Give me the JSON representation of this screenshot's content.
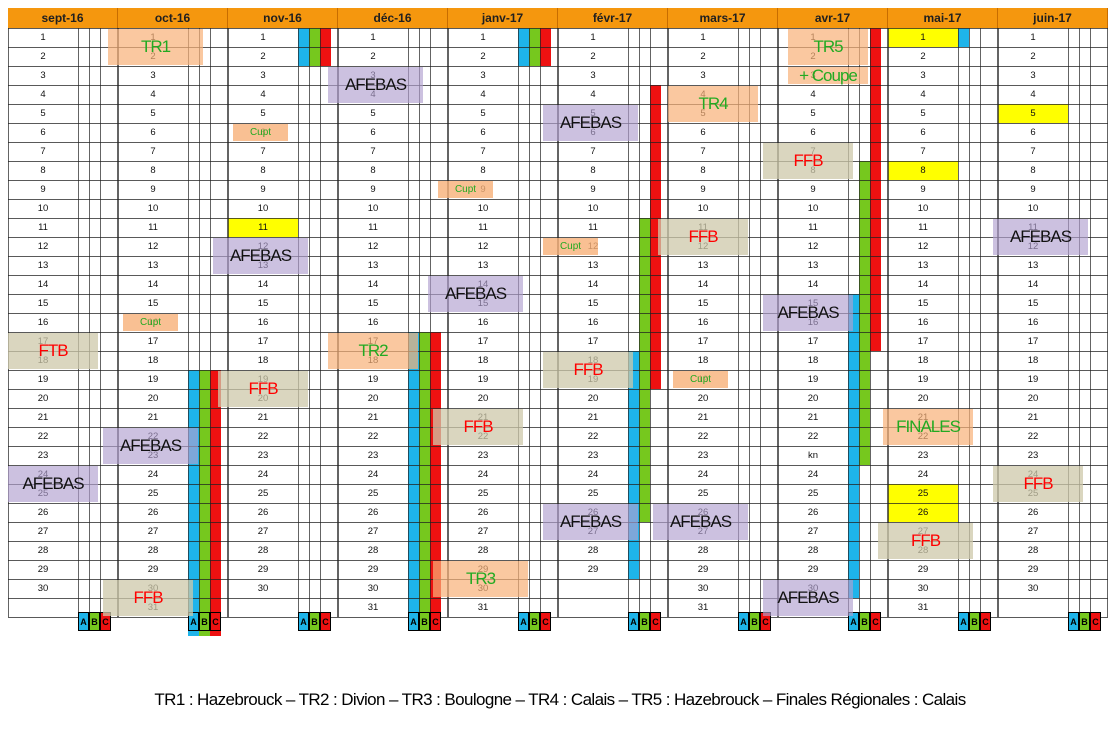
{
  "months": [
    {
      "name": "sept-16",
      "days": 30
    },
    {
      "name": "oct-16",
      "days": 31
    },
    {
      "name": "nov-16",
      "days": 30
    },
    {
      "name": "déc-16",
      "days": 31
    },
    {
      "name": "janv-17",
      "days": 31
    },
    {
      "name": "févr-17",
      "days": 29
    },
    {
      "name": "mars-17",
      "days": 31
    },
    {
      "name": "avr-17",
      "days": 30
    },
    {
      "name": "mai-17",
      "days": 31
    },
    {
      "name": "juin-17",
      "days": 30
    }
  ],
  "day_overrides": [
    {
      "month": 7,
      "day": 23,
      "text": "kn"
    }
  ],
  "highlights": [
    {
      "month": 2,
      "day": 11
    },
    {
      "month": 8,
      "day": 1
    },
    {
      "month": 8,
      "day": 8
    },
    {
      "month": 8,
      "day": 25
    },
    {
      "month": 8,
      "day": 26
    },
    {
      "month": 9,
      "day": 5
    }
  ],
  "legend_labels": [
    "A",
    "B",
    "C"
  ],
  "colors": {
    "A": "#1eb4ea",
    "B": "#76c81e",
    "C": "#ee1111",
    "header": "#f5970e",
    "highlight": "#ffff00"
  },
  "bars": [
    {
      "month": 1,
      "col": "A",
      "start": 19,
      "end": 32
    },
    {
      "month": 1,
      "col": "B",
      "start": 19,
      "end": 32
    },
    {
      "month": 1,
      "col": "C",
      "start": 19,
      "end": 32
    },
    {
      "month": 2,
      "col": "A",
      "start": 1,
      "end": 2
    },
    {
      "month": 2,
      "col": "B",
      "start": 1,
      "end": 2
    },
    {
      "month": 2,
      "col": "C",
      "start": 1,
      "end": 2
    },
    {
      "month": 3,
      "col": "A",
      "start": 17,
      "end": 31
    },
    {
      "month": 3,
      "col": "B",
      "start": 17,
      "end": 31
    },
    {
      "month": 3,
      "col": "C",
      "start": 17,
      "end": 31
    },
    {
      "month": 4,
      "col": "A",
      "start": 1,
      "end": 2
    },
    {
      "month": 4,
      "col": "B",
      "start": 1,
      "end": 2
    },
    {
      "month": 4,
      "col": "C",
      "start": 1,
      "end": 2
    },
    {
      "month": 5,
      "col": "C",
      "start": 4,
      "end": 19
    },
    {
      "month": 5,
      "col": "B",
      "start": 11,
      "end": 26
    },
    {
      "month": 5,
      "col": "A",
      "start": 18,
      "end": 29
    },
    {
      "month": 7,
      "col": "C",
      "start": 1,
      "end": 17
    },
    {
      "month": 7,
      "col": "B",
      "start": 8,
      "end": 23
    },
    {
      "month": 7,
      "col": "A",
      "start": 15,
      "end": 30
    },
    {
      "month": 8,
      "col": "A",
      "start": 1,
      "end": 1
    }
  ],
  "events": [
    {
      "month": 1,
      "label": "TR1",
      "type": "tr",
      "day": 1,
      "span": 2,
      "dx": -10,
      "w": 95
    },
    {
      "month": 2,
      "label": "Cupt",
      "type": "cupt",
      "day": 6,
      "span": 1,
      "dx": 5,
      "w": 55
    },
    {
      "month": 3,
      "label": "AFEBAS",
      "type": "afebas",
      "day": 3,
      "span": 2,
      "dx": -10,
      "w": 95
    },
    {
      "month": 5,
      "label": "AFEBAS",
      "type": "afebas",
      "day": 5,
      "span": 2,
      "dx": -15,
      "w": 95
    },
    {
      "month": 6,
      "label": "TR4",
      "type": "tr",
      "day": 4,
      "span": 2,
      "dx": 0,
      "w": 90
    },
    {
      "month": 7,
      "label": "TR5",
      "type": "tr",
      "day": 1,
      "span": 2,
      "dx": 10,
      "w": 80
    },
    {
      "month": 7,
      "label": "+ Coupe",
      "type": "tr",
      "day": 3,
      "span": 1,
      "dx": 10,
      "w": 80
    },
    {
      "month": 4,
      "label": "Cupt",
      "type": "cupt",
      "day": 9,
      "span": 1,
      "dx": -10,
      "w": 55
    },
    {
      "month": 7,
      "label": "FFB",
      "type": "ffb",
      "day": 7,
      "span": 2,
      "dx": -15,
      "w": 90
    },
    {
      "month": 2,
      "label": "AFEBAS",
      "type": "afebas",
      "day": 12,
      "span": 2,
      "dx": -15,
      "w": 95
    },
    {
      "month": 5,
      "label": "Cupt",
      "type": "cupt",
      "day": 12,
      "span": 1,
      "dx": -15,
      "w": 55
    },
    {
      "month": 6,
      "label": "FFB",
      "type": "ffb",
      "day": 11,
      "span": 2,
      "dx": -10,
      "w": 90
    },
    {
      "month": 9,
      "label": "AFEBAS",
      "type": "afebas",
      "day": 11,
      "span": 2,
      "dx": -5,
      "w": 95
    },
    {
      "month": 4,
      "label": "AFEBAS",
      "type": "afebas",
      "day": 14,
      "span": 2,
      "dx": -20,
      "w": 95
    },
    {
      "month": 7,
      "label": "AFEBAS",
      "type": "afebas",
      "day": 15,
      "span": 2,
      "dx": -15,
      "w": 90
    },
    {
      "month": 1,
      "label": "Cupt",
      "type": "cupt",
      "day": 16,
      "span": 1,
      "dx": 5,
      "w": 55
    },
    {
      "month": 0,
      "label": "FTB",
      "type": "ffb",
      "day": 17,
      "span": 2,
      "dx": 0,
      "w": 90
    },
    {
      "month": 3,
      "label": "TR2",
      "type": "tr",
      "day": 17,
      "span": 2,
      "dx": -10,
      "w": 90
    },
    {
      "month": 5,
      "label": "FFB",
      "type": "ffb",
      "day": 18,
      "span": 2,
      "dx": -15,
      "w": 90
    },
    {
      "month": 2,
      "label": "FFB",
      "type": "ffb",
      "day": 19,
      "span": 2,
      "dx": -10,
      "w": 90
    },
    {
      "month": 6,
      "label": "Cupt",
      "type": "cupt",
      "day": 19,
      "span": 1,
      "dx": 5,
      "w": 55
    },
    {
      "month": 4,
      "label": "FFB",
      "type": "ffb",
      "day": 21,
      "span": 2,
      "dx": -15,
      "w": 90
    },
    {
      "month": 8,
      "label": "FINALES",
      "type": "finales",
      "day": 21,
      "span": 2,
      "dx": -5,
      "w": 90
    },
    {
      "month": 1,
      "label": "AFEBAS",
      "type": "afebas",
      "day": 22,
      "span": 2,
      "dx": -15,
      "w": 95
    },
    {
      "month": 0,
      "label": "AFEBAS",
      "type": "afebas",
      "day": 24,
      "span": 2,
      "dx": 0,
      "w": 90
    },
    {
      "month": 9,
      "label": "FFB",
      "type": "ffb",
      "day": 24,
      "span": 2,
      "dx": -5,
      "w": 90
    },
    {
      "month": 5,
      "label": "AFEBAS",
      "type": "afebas",
      "day": 26,
      "span": 2,
      "dx": -15,
      "w": 95
    },
    {
      "month": 6,
      "label": "AFEBAS",
      "type": "afebas",
      "day": 26,
      "span": 2,
      "dx": -15,
      "w": 95
    },
    {
      "month": 8,
      "label": "FFB",
      "type": "ffb",
      "day": 27,
      "span": 2,
      "dx": -10,
      "w": 95
    },
    {
      "month": 4,
      "label": "TR3",
      "type": "tr",
      "day": 29,
      "span": 2,
      "dx": -15,
      "w": 95
    },
    {
      "month": 1,
      "label": "FFB",
      "type": "ffb",
      "day": 30,
      "span": 2,
      "dx": -15,
      "w": 90
    },
    {
      "month": 7,
      "label": "AFEBAS",
      "type": "afebas",
      "day": 30,
      "span": 2,
      "dx": -15,
      "w": 90
    }
  ],
  "footer": "TR1 : Hazebrouck – TR2 : Divion – TR3 : Boulogne – TR4 : Calais – TR5 : Hazebrouck – Finales Régionales : Calais"
}
